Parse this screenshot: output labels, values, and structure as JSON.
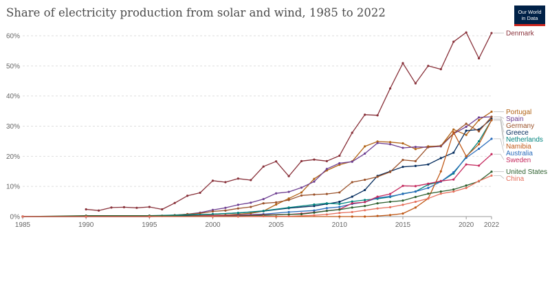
{
  "header": {
    "title": "Share of electricity production from solar and wind, 1985 to 2022",
    "logo_lines": [
      "Our World",
      "in Data"
    ]
  },
  "chart_data": {
    "type": "line",
    "title": "Share of electricity production from solar and wind, 1985 to 2022",
    "xlabel": "",
    "ylabel": "",
    "xlim": [
      1985,
      2022
    ],
    "ylim": [
      0,
      60
    ],
    "x_ticks": [
      "1985",
      "1990",
      "1995",
      "2000",
      "2005",
      "2010",
      "2015",
      "2020",
      "2022"
    ],
    "y_ticks": [
      "0%",
      "10%",
      "20%",
      "30%",
      "40%",
      "50%",
      "60%"
    ],
    "grid": "horizontal dotted",
    "legend": "right, labels at line ends",
    "series": [
      {
        "name": "Denmark",
        "color": "#883039",
        "x": [
          1990,
          1991,
          1992,
          1993,
          1994,
          1995,
          1996,
          1997,
          1998,
          1999,
          2000,
          2001,
          2002,
          2003,
          2004,
          2005,
          2006,
          2007,
          2008,
          2009,
          2010,
          2011,
          2012,
          2013,
          2014,
          2015,
          2016,
          2017,
          2018,
          2019,
          2020,
          2021,
          2022
        ],
        "y": [
          2.4,
          2.0,
          3.0,
          3.1,
          2.9,
          3.2,
          2.4,
          4.5,
          6.9,
          7.9,
          11.9,
          11.4,
          12.6,
          12.1,
          16.6,
          18.3,
          13.4,
          18.4,
          18.9,
          18.4,
          20.2,
          27.8,
          33.8,
          33.6,
          42.5,
          50.9,
          44.2,
          50.0,
          48.9,
          58.0,
          61.1,
          52.5,
          60.9
        ]
      },
      {
        "name": "Portugal",
        "color": "#b16214",
        "x": [
          1985,
          1990,
          1995,
          2000,
          2001,
          2002,
          2003,
          2004,
          2005,
          2006,
          2007,
          2008,
          2009,
          2010,
          2011,
          2012,
          2013,
          2014,
          2015,
          2016,
          2017,
          2018,
          2019,
          2020,
          2021,
          2022
        ],
        "y": [
          0,
          0,
          0,
          0.4,
          0.5,
          0.8,
          1.1,
          1.8,
          4.0,
          6.0,
          8.0,
          12.5,
          15.3,
          17.2,
          18.3,
          23.3,
          24.9,
          24.7,
          24.3,
          22.4,
          23.3,
          23.4,
          28.9,
          27.1,
          32.0,
          34.8
        ]
      },
      {
        "name": "Spain",
        "color": "#6d3e91",
        "x": [
          1985,
          1990,
          1995,
          1996,
          1997,
          1998,
          1999,
          2000,
          2001,
          2002,
          2003,
          2004,
          2005,
          2006,
          2007,
          2008,
          2009,
          2010,
          2011,
          2012,
          2013,
          2014,
          2015,
          2016,
          2017,
          2018,
          2019,
          2020,
          2021,
          2022
        ],
        "y": [
          0,
          0,
          0,
          0.2,
          0.4,
          0.8,
          1.3,
          2.2,
          2.9,
          3.9,
          4.6,
          5.8,
          7.7,
          8.2,
          9.6,
          11.6,
          15.8,
          17.7,
          18.2,
          20.9,
          24.4,
          24.0,
          22.8,
          23.1,
          23.0,
          23.3,
          27.5,
          29.8,
          32.9,
          33.1
        ]
      },
      {
        "name": "Greece",
        "color": "#00295b",
        "x": [
          1985,
          1990,
          1995,
          2000,
          2002,
          2004,
          2006,
          2008,
          2009,
          2010,
          2011,
          2012,
          2013,
          2014,
          2015,
          2016,
          2017,
          2018,
          2019,
          2020,
          2021,
          2022
        ],
        "y": [
          0,
          0,
          0,
          0.8,
          1.2,
          1.8,
          2.8,
          3.5,
          4.2,
          4.9,
          6.6,
          8.8,
          13.5,
          15.0,
          16.5,
          16.8,
          17.3,
          19.4,
          21.2,
          28.5,
          28.9,
          32.4
        ]
      },
      {
        "name": "Germany",
        "color": "#9a5129",
        "x": [
          1985,
          1990,
          1995,
          1996,
          1997,
          1998,
          1999,
          2000,
          2001,
          2002,
          2003,
          2004,
          2005,
          2006,
          2007,
          2008,
          2009,
          2010,
          2011,
          2012,
          2013,
          2014,
          2015,
          2016,
          2017,
          2018,
          2019,
          2020,
          2021,
          2022
        ],
        "y": [
          0,
          0,
          0,
          0.3,
          0.5,
          0.8,
          1.1,
          1.7,
          2.0,
          2.7,
          3.2,
          4.4,
          4.7,
          5.5,
          7.0,
          7.3,
          7.5,
          8.0,
          11.4,
          12.2,
          13.2,
          14.8,
          18.8,
          18.4,
          23.1,
          23.5,
          27.6,
          30.8,
          28.3,
          33.1
        ]
      },
      {
        "name": "Netherlands",
        "color": "#00847e",
        "x": [
          1985,
          1990,
          1995,
          2000,
          2002,
          2004,
          2006,
          2008,
          2009,
          2010,
          2011,
          2012,
          2013,
          2014,
          2015,
          2016,
          2017,
          2018,
          2019,
          2020,
          2021,
          2022
        ],
        "y": [
          0,
          0,
          0.3,
          0.8,
          1.2,
          1.9,
          3.0,
          4.0,
          4.4,
          4.2,
          5.0,
          5.5,
          5.9,
          6.5,
          7.6,
          8.3,
          10.6,
          11.6,
          14.3,
          19.8,
          25.0,
          32.0
        ]
      },
      {
        "name": "Australia",
        "color": "#286bbb",
        "x": [
          1985,
          1990,
          1995,
          2000,
          2002,
          2004,
          2006,
          2008,
          2009,
          2010,
          2011,
          2012,
          2013,
          2014,
          2015,
          2016,
          2017,
          2018,
          2019,
          2020,
          2021,
          2022
        ],
        "y": [
          0,
          0,
          0,
          0.2,
          0.5,
          0.8,
          1.5,
          2.0,
          2.8,
          3.2,
          4.2,
          4.8,
          6.2,
          6.7,
          7.5,
          8.3,
          9.5,
          11.6,
          14.7,
          19.5,
          22.5,
          25.8
        ]
      },
      {
        "name": "Namibia",
        "color": "#c05917",
        "x": [
          1985,
          1990,
          1995,
          2000,
          2005,
          2010,
          2011,
          2012,
          2013,
          2014,
          2015,
          2016,
          2017,
          2018,
          2019,
          2020,
          2021,
          2022
        ],
        "y": [
          0,
          0,
          0,
          0,
          0,
          0,
          0,
          0,
          0.2,
          0.5,
          1.0,
          3.0,
          6.0,
          15.0,
          28.0,
          20.0,
          24.0,
          32.0
        ]
      },
      {
        "name": "Sweden",
        "color": "#c4285d",
        "x": [
          1985,
          1990,
          1995,
          2000,
          2002,
          2004,
          2006,
          2007,
          2008,
          2009,
          2010,
          2011,
          2012,
          2013,
          2014,
          2015,
          2016,
          2017,
          2018,
          2019,
          2020,
          2021,
          2022
        ],
        "y": [
          0,
          0,
          0,
          0.3,
          0.4,
          0.6,
          0.7,
          1.0,
          1.4,
          1.9,
          2.4,
          4.4,
          4.8,
          6.6,
          7.5,
          10.2,
          10.1,
          10.9,
          11.8,
          12.3,
          17.3,
          16.9,
          20.7
        ]
      },
      {
        "name": "United States",
        "color": "#2c5f2d",
        "x": [
          1985,
          1990,
          1995,
          2000,
          2002,
          2004,
          2006,
          2007,
          2008,
          2009,
          2010,
          2011,
          2012,
          2013,
          2014,
          2015,
          2016,
          2017,
          2018,
          2019,
          2020,
          2021,
          2022
        ],
        "y": [
          0,
          0.3,
          0.3,
          0.1,
          0.2,
          0.4,
          0.7,
          0.8,
          1.3,
          1.9,
          2.3,
          3.0,
          3.5,
          4.4,
          4.9,
          5.3,
          6.5,
          7.6,
          8.3,
          9.0,
          10.3,
          11.7,
          14.9
        ]
      },
      {
        "name": "China",
        "color": "#e56e5a",
        "x": [
          1985,
          1990,
          1995,
          2000,
          2002,
          2004,
          2006,
          2008,
          2009,
          2010,
          2011,
          2012,
          2013,
          2014,
          2015,
          2016,
          2017,
          2018,
          2019,
          2020,
          2021,
          2022
        ],
        "y": [
          0,
          0,
          0,
          0,
          0,
          0.1,
          0.1,
          0.4,
          0.7,
          1.2,
          1.5,
          2.1,
          2.7,
          3.1,
          3.9,
          4.9,
          6.0,
          7.6,
          8.3,
          9.5,
          11.8,
          13.6
        ]
      }
    ]
  }
}
